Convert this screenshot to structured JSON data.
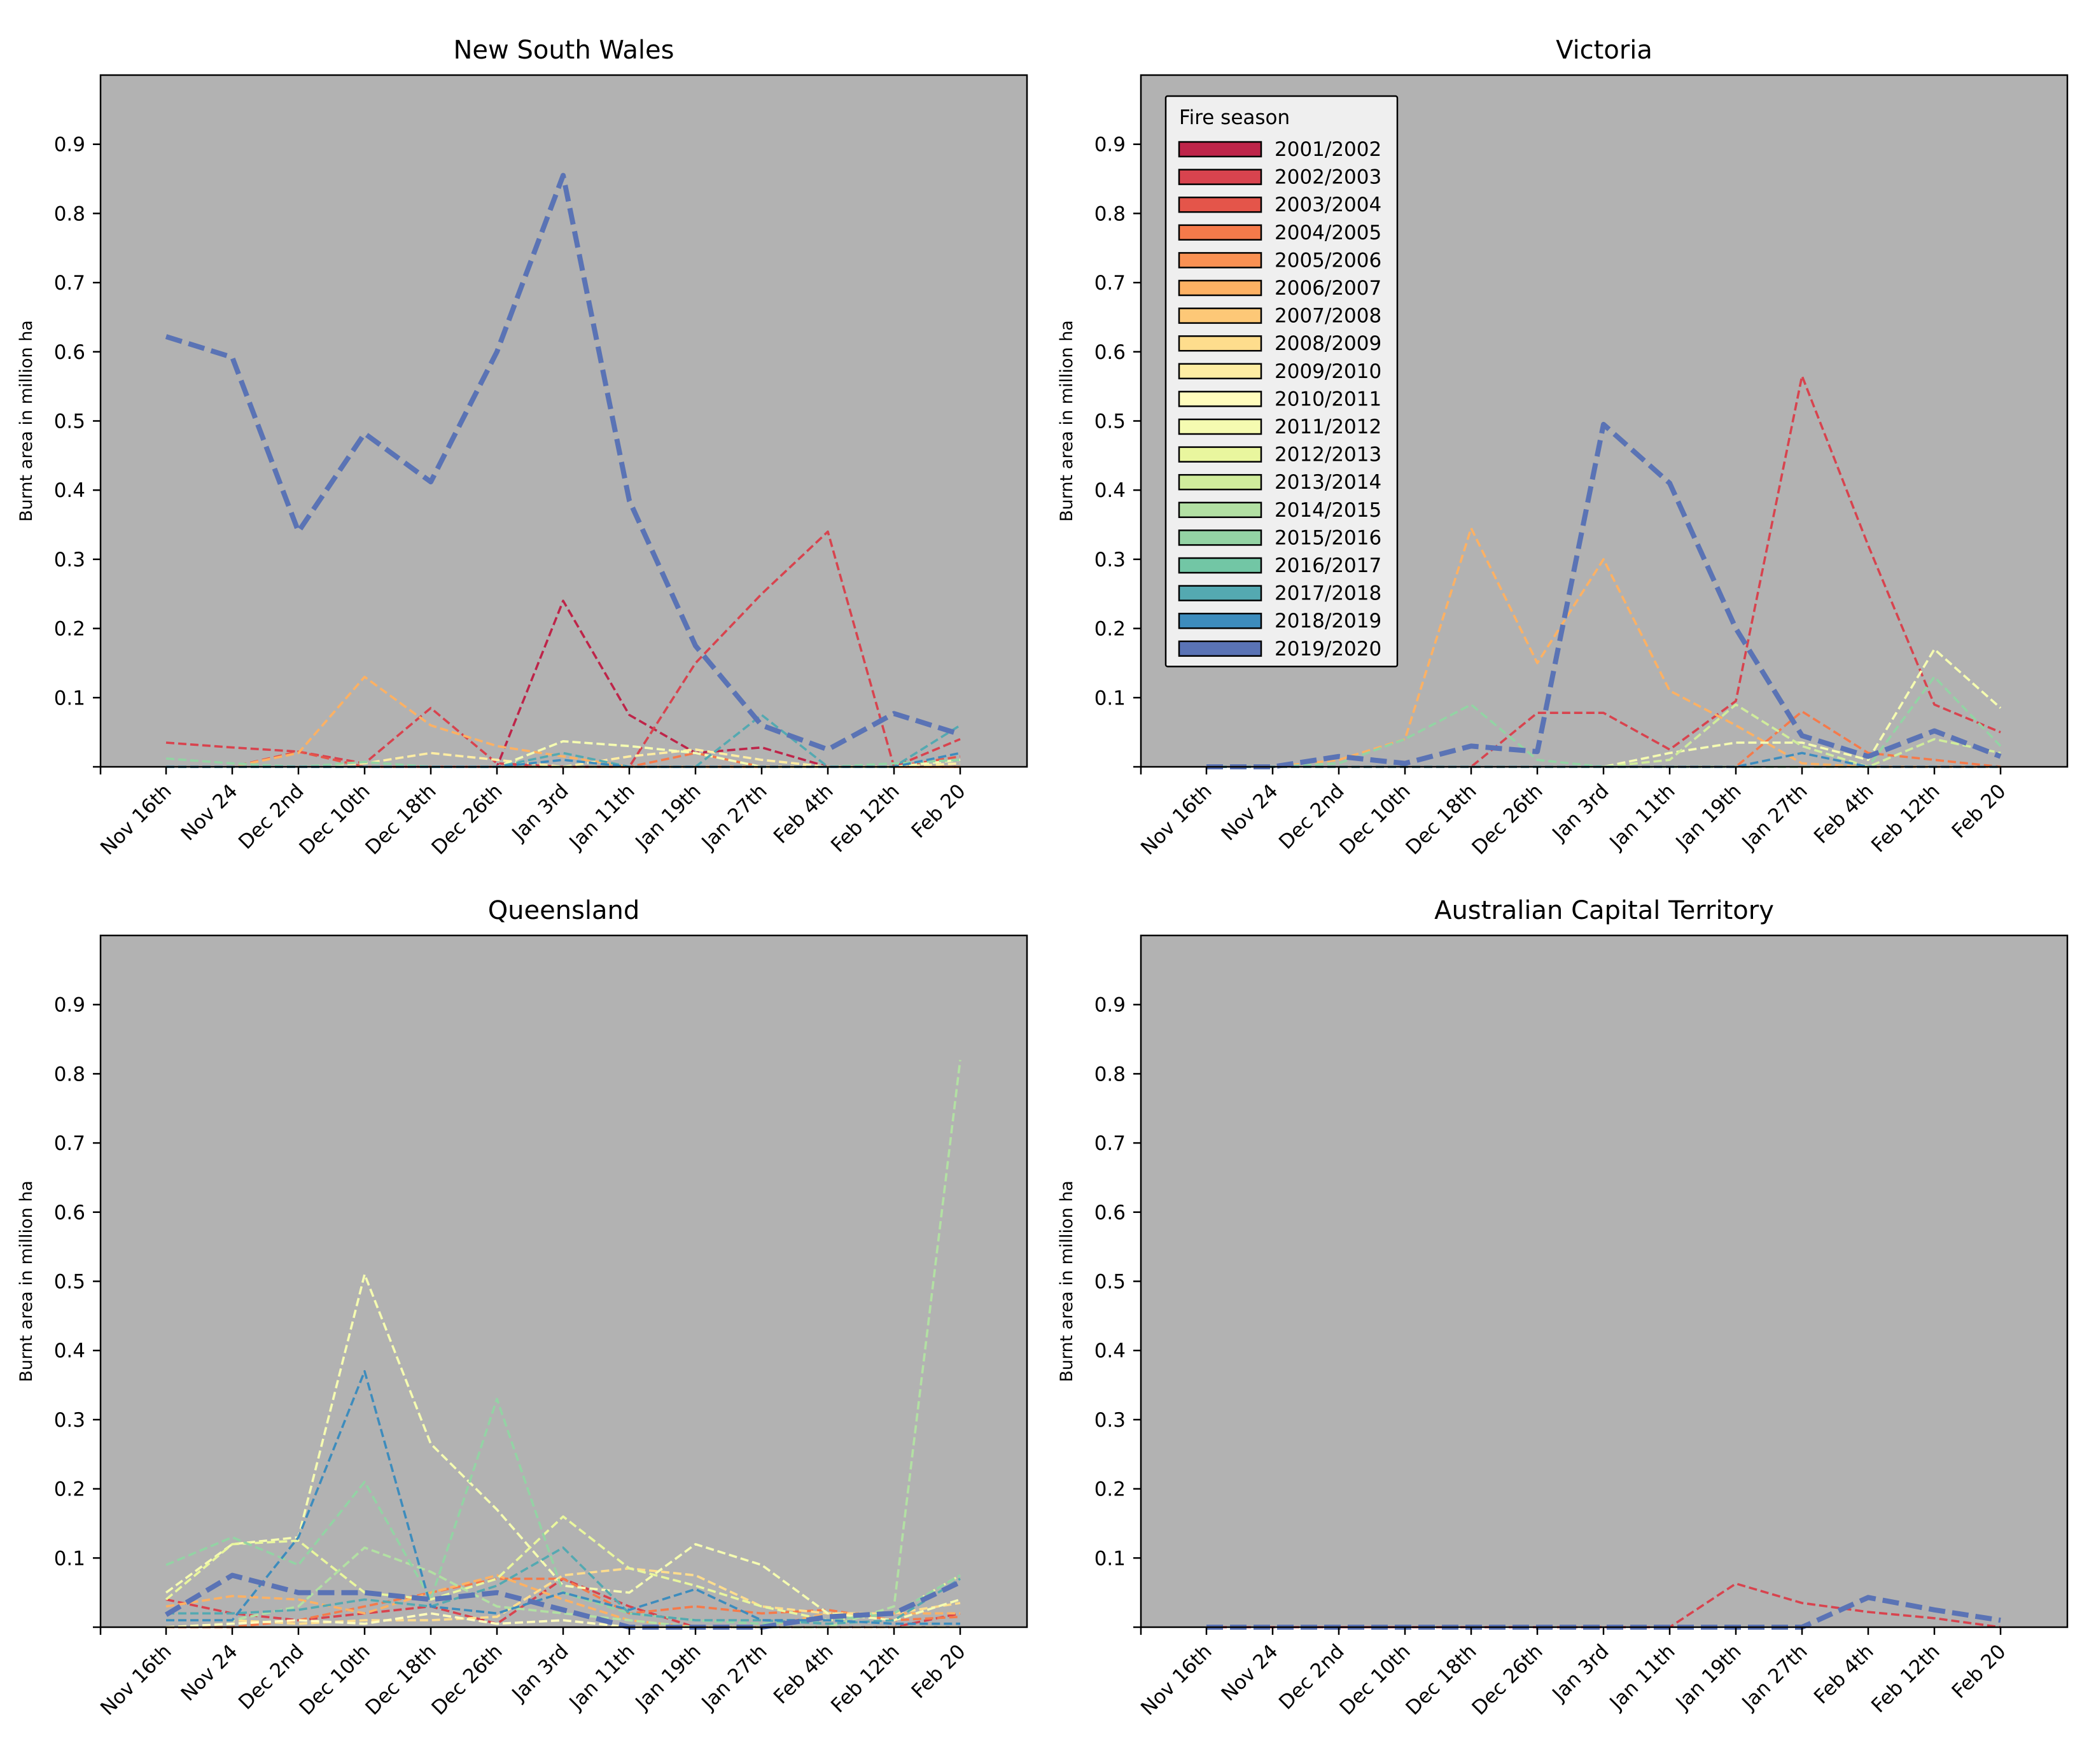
{
  "chart_data": {
    "type": "line",
    "ylabel": "Burnt area in million ha",
    "ylim": [
      0,
      1.0
    ],
    "yticks": [
      0.1,
      0.2,
      0.3,
      0.4,
      0.5,
      0.6,
      0.7,
      0.8,
      0.9
    ],
    "ytick_labels": [
      "0.1",
      "0.2",
      "0.3",
      "0.4",
      "0.5",
      "0.6",
      "0.7",
      "0.8",
      "0.9"
    ],
    "categories": [
      "Nov 16th",
      "Nov 24",
      "Dec 2nd",
      "Dec 10th",
      "Dec 18th",
      "Dec 26th",
      "Jan 3rd",
      "Jan 11th",
      "Jan 19th",
      "Jan 27th",
      "Feb 4th",
      "Feb 12th",
      "Feb 20"
    ],
    "background": "#b2b2b2",
    "highlight_season": "2019/2020",
    "legend": {
      "title": "Fire season",
      "location": "upper-left of Victoria panel",
      "entries": [
        {
          "label": "2001/2002",
          "color": "#be2449"
        },
        {
          "label": "2002/2003",
          "color": "#d8434e"
        },
        {
          "label": "2003/2004",
          "color": "#e4554a"
        },
        {
          "label": "2004/2005",
          "color": "#f57a4a"
        },
        {
          "label": "2005/2006",
          "color": "#f99153"
        },
        {
          "label": "2006/2007",
          "color": "#fdb163"
        },
        {
          "label": "2007/2008",
          "color": "#fdc877"
        },
        {
          "label": "2008/2009",
          "color": "#fedd8d"
        },
        {
          "label": "2009/2010",
          "color": "#feeda3"
        },
        {
          "label": "2010/2011",
          "color": "#fffcbc"
        },
        {
          "label": "2011/2012",
          "color": "#f5fbb1"
        },
        {
          "label": "2012/2013",
          "color": "#e9f69e"
        },
        {
          "label": "2013/2014",
          "color": "#d0ec9c"
        },
        {
          "label": "2014/2015",
          "color": "#b2e0a3"
        },
        {
          "label": "2015/2016",
          "color": "#93d3a4"
        },
        {
          "label": "2016/2017",
          "color": "#72c6a5"
        },
        {
          "label": "2017/2018",
          "color": "#54a9b1"
        },
        {
          "label": "2018/2019",
          "color": "#3d8cbd"
        },
        {
          "label": "2019/2020",
          "color": "#5a73b5"
        }
      ]
    },
    "panels": [
      {
        "title": "New South Wales",
        "series": [
          {
            "name": "2001/2002",
            "values": [
              0,
              0,
              0,
              0,
              0,
              0,
              0.24,
              0.075,
              0.02,
              0.028,
              0,
              0,
              0
            ]
          },
          {
            "name": "2002/2003",
            "values": [
              0.035,
              0.028,
              0.022,
              0.005,
              0.085,
              0.005,
              0,
              0,
              0.15,
              0.25,
              0.34,
              0,
              0.04
            ]
          },
          {
            "name": "2003/2004",
            "values": [
              0,
              0,
              0.022,
              0,
              0,
              0,
              0,
              0,
              0,
              0,
              0,
              0,
              0.015
            ]
          },
          {
            "name": "2004/2005",
            "values": [
              0,
              0,
              0,
              0,
              0,
              0,
              0,
              0,
              0.02,
              0,
              0,
              0,
              0
            ]
          },
          {
            "name": "2006/2007",
            "values": [
              0,
              0,
              0.02,
              0.13,
              0.06,
              0.03,
              0.015,
              0,
              0,
              0,
              0,
              0,
              0
            ]
          },
          {
            "name": "2009/2010",
            "values": [
              0,
              0,
              0,
              0.005,
              0.02,
              0.01,
              0,
              0.015,
              0.025,
              0.01,
              0,
              0,
              0.005
            ]
          },
          {
            "name": "2011/2012",
            "values": [
              0,
              0,
              0,
              0,
              0,
              0,
              0.037,
              0.03,
              0.02,
              0,
              0,
              0,
              0.01
            ]
          },
          {
            "name": "2015/2016",
            "values": [
              0.012,
              0.005,
              0,
              0.007,
              0,
              0,
              0,
              0,
              0,
              0,
              0,
              0.005,
              0.01
            ]
          },
          {
            "name": "2017/2018",
            "values": [
              0,
              0,
              0,
              0,
              0,
              0,
              0.02,
              0,
              0,
              0.075,
              0,
              0,
              0.06
            ]
          },
          {
            "name": "2018/2019",
            "values": [
              0,
              0,
              0,
              0,
              0,
              0,
              0.01,
              0,
              0,
              0,
              0,
              0,
              0.02
            ]
          },
          {
            "name": "2019/2020",
            "values": [
              0.622,
              0.592,
              0.34,
              0.482,
              0.412,
              0.6,
              0.855,
              0.385,
              0.175,
              0.06,
              0.025,
              0.077,
              0.047
            ]
          }
        ]
      },
      {
        "title": "Victoria",
        "series": [
          {
            "name": "2002/2003",
            "values": [
              0,
              0,
              0,
              0,
              0,
              0.078,
              0.078,
              0.025,
              0.095,
              0.565,
              0.32,
              0.09,
              0.05
            ]
          },
          {
            "name": "2006/2007",
            "values": [
              0,
              0,
              0.01,
              0.04,
              0.345,
              0.15,
              0.3,
              0.11,
              0.06,
              0.005,
              0,
              0,
              0
            ]
          },
          {
            "name": "2004/2005",
            "values": [
              0,
              0,
              0,
              0,
              0,
              0,
              0,
              0,
              0,
              0.08,
              0.02,
              0.01,
              0
            ]
          },
          {
            "name": "2011/2012",
            "values": [
              0,
              0,
              0,
              0,
              0,
              0,
              0,
              0.02,
              0.035,
              0.035,
              0.01,
              0.17,
              0.085
            ]
          },
          {
            "name": "2013/2014",
            "values": [
              0,
              0,
              0,
              0,
              0,
              0,
              0,
              0.01,
              0.09,
              0.03,
              0,
              0.04,
              0.02
            ]
          },
          {
            "name": "2015/2016",
            "values": [
              0,
              0,
              0.005,
              0.04,
              0.09,
              0.01,
              0,
              0,
              0,
              0,
              0,
              0.13,
              0.03
            ]
          },
          {
            "name": "2018/2019",
            "values": [
              0,
              0,
              0,
              0,
              0,
              0,
              0,
              0,
              0,
              0.02,
              0,
              0,
              0
            ]
          },
          {
            "name": "2019/2020",
            "values": [
              0,
              0,
              0.015,
              0.005,
              0.03,
              0.022,
              0.495,
              0.41,
              0.2,
              0.045,
              0.015,
              0.052,
              0.015
            ]
          }
        ]
      },
      {
        "title": "Queensland",
        "series": [
          {
            "name": "2002/2003",
            "values": [
              0.04,
              0.02,
              0.01,
              0.02,
              0.03,
              0.005,
              0.07,
              0.03,
              0,
              0,
              0,
              0,
              0.02
            ]
          },
          {
            "name": "2004/2005",
            "values": [
              0,
              0,
              0.01,
              0.03,
              0.05,
              0.07,
              0.07,
              0.02,
              0.03,
              0.02,
              0.025,
              0.01,
              0.015
            ]
          },
          {
            "name": "2006/2007",
            "values": [
              0.03,
              0.045,
              0.04,
              0.02,
              0.05,
              0.075,
              0.04,
              0.01,
              0,
              0,
              0.02,
              0.02,
              0.02
            ]
          },
          {
            "name": "2008/2009",
            "values": [
              0.01,
              0.01,
              0.005,
              0.01,
              0.01,
              0.015,
              0.075,
              0.085,
              0.075,
              0.03,
              0.02,
              0.02,
              0.035
            ]
          },
          {
            "name": "2010/2011",
            "values": [
              0,
              0.005,
              0.01,
              0.005,
              0.02,
              0.005,
              0.01,
              0,
              0,
              0,
              0,
              0,
              0
            ]
          },
          {
            "name": "2011/2012",
            "values": [
              0.05,
              0.12,
              0.13,
              0.51,
              0.265,
              0.17,
              0.06,
              0.05,
              0.12,
              0.09,
              0.02,
              0.01,
              0.04
            ]
          },
          {
            "name": "2012/2013",
            "values": [
              0.04,
              0.12,
              0.125,
              0.05,
              0.04,
              0.07,
              0.16,
              0.085,
              0.06,
              0.03,
              0.01,
              0.02,
              0.075
            ]
          },
          {
            "name": "2014/2015",
            "values": [
              0.01,
              0.01,
              0.03,
              0.115,
              0.08,
              0.03,
              0.02,
              0.01,
              0,
              0,
              0,
              0.03,
              0.82
            ]
          },
          {
            "name": "2015/2016",
            "values": [
              0.09,
              0.13,
              0.09,
              0.21,
              0.04,
              0.33,
              0.05,
              0.02,
              0.01,
              0.005,
              0.01,
              0.02,
              0.075
            ]
          },
          {
            "name": "2017/2018",
            "values": [
              0.02,
              0.02,
              0.025,
              0.04,
              0.03,
              0.06,
              0.115,
              0.02,
              0.01,
              0.01,
              0.005,
              0.01,
              0.07
            ]
          },
          {
            "name": "2018/2019",
            "values": [
              0.01,
              0.01,
              0.13,
              0.37,
              0.03,
              0.02,
              0.05,
              0.025,
              0.055,
              0.01,
              0.01,
              0.005,
              0.005
            ]
          },
          {
            "name": "2019/2020",
            "values": [
              0.018,
              0.075,
              0.05,
              0.05,
              0.04,
              0.05,
              0.025,
              0,
              0,
              0,
              0.015,
              0.02,
              0.065
            ]
          }
        ]
      },
      {
        "title": "Australian Capital Territory",
        "series": [
          {
            "name": "2002/2003",
            "values": [
              0,
              0,
              0,
              0,
              0,
              0,
              0,
              0,
              0.063,
              0.035,
              0.022,
              0.013,
              0
            ]
          },
          {
            "name": "2019/2020",
            "values": [
              0,
              0,
              0,
              0,
              0,
              0,
              0,
              0,
              0,
              0,
              0.043,
              0.025,
              0.01
            ]
          }
        ]
      }
    ]
  }
}
